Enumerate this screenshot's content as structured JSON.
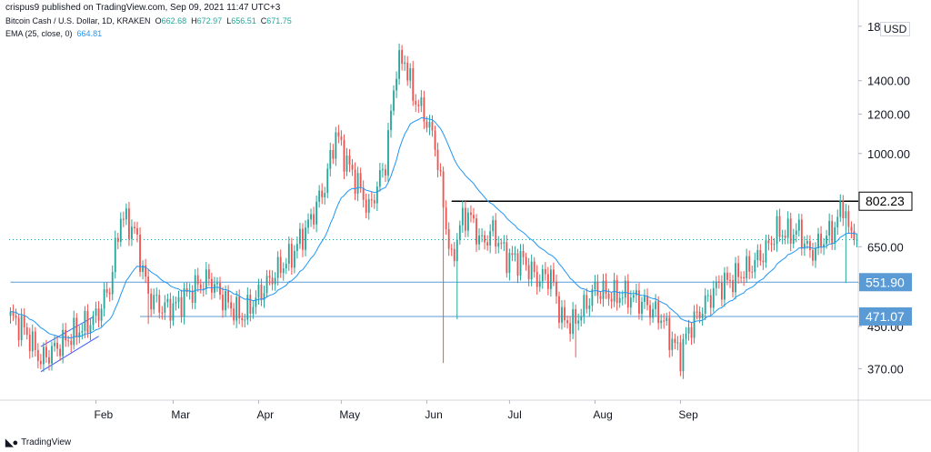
{
  "header": {
    "published": "crispus9 published on TradingView.com, Sep 09, 2021 11:47 UTC+3",
    "symbol": "Bitcoin Cash / U.S. Dollar, 1D, KRAKEN",
    "o_label": "O",
    "o_value": "662.68",
    "h_label": "H",
    "h_value": "672.97",
    "l_label": "L",
    "l_value": "656.51",
    "c_label": "C",
    "c_value": "671.75",
    "ema_label": "EMA (25, close, 0)",
    "ema_value": "664.81"
  },
  "currency": "USD",
  "footer": {
    "brand": "TradingView"
  },
  "colors": {
    "up": "#26a69a",
    "down": "#ef5350",
    "ema": "#2196f3",
    "line": "#5b9bd5",
    "resistance": "#000000",
    "grid": "#e0e3eb"
  },
  "chart_data": {
    "type": "candlestick",
    "scale": "log",
    "ylim": [
      320,
      1900
    ],
    "y_ticks": [
      "370.00",
      "450.00",
      "550.00",
      "650.00",
      "1000.00",
      "1200.00",
      "1400.00",
      "1800.00"
    ],
    "x_ticks": [
      "Feb",
      "Mar",
      "Apr",
      "May",
      "Jun",
      "Jul",
      "Aug",
      "Sep"
    ],
    "price_labels": [
      {
        "text": "802.23",
        "value": 802.23,
        "style": "black"
      },
      {
        "text": "551.90",
        "value": 551.9,
        "style": "blue"
      },
      {
        "text": "471.07",
        "value": 471.07,
        "style": "blue"
      }
    ],
    "last_close": 671.75,
    "horizontal_lines": [
      {
        "value": 802.23,
        "from_day": 160
      },
      {
        "value": 551.9,
        "from_day": 0
      },
      {
        "value": 471.07,
        "from_day": 47
      }
    ],
    "trend_channel": [
      {
        "from": [
          11,
          410
        ],
        "to": [
          30,
          470
        ]
      },
      {
        "from": [
          11,
          365
        ],
        "to": [
          32,
          430
        ]
      }
    ],
    "anchors": [
      [
        0,
        470
      ],
      [
        5,
        445
      ],
      [
        11,
        385
      ],
      [
        17,
        410
      ],
      [
        24,
        440
      ],
      [
        31,
        470
      ],
      [
        36,
        540
      ],
      [
        40,
        750
      ],
      [
        45,
        700
      ],
      [
        50,
        520
      ],
      [
        55,
        490
      ],
      [
        60,
        495
      ],
      [
        66,
        535
      ],
      [
        72,
        560
      ],
      [
        78,
        505
      ],
      [
        84,
        470
      ],
      [
        90,
        520
      ],
      [
        96,
        575
      ],
      [
        102,
        625
      ],
      [
        108,
        720
      ],
      [
        114,
        860
      ],
      [
        118,
        1100
      ],
      [
        122,
        960
      ],
      [
        126,
        870
      ],
      [
        130,
        770
      ],
      [
        136,
        960
      ],
      [
        140,
        1500
      ],
      [
        143,
        1540
      ],
      [
        146,
        1310
      ],
      [
        150,
        1200
      ],
      [
        154,
        1050
      ],
      [
        157,
        790
      ],
      [
        160,
        600
      ],
      [
        163,
        720
      ],
      [
        166,
        760
      ],
      [
        171,
        660
      ],
      [
        175,
        700
      ],
      [
        180,
        620
      ],
      [
        186,
        610
      ],
      [
        191,
        560
      ],
      [
        196,
        570
      ],
      [
        200,
        465
      ],
      [
        204,
        455
      ],
      [
        208,
        490
      ],
      [
        212,
        535
      ],
      [
        218,
        520
      ],
      [
        224,
        520
      ],
      [
        230,
        500
      ],
      [
        236,
        470
      ],
      [
        240,
        420
      ],
      [
        243,
        395
      ],
      [
        246,
        445
      ],
      [
        251,
        490
      ],
      [
        256,
        540
      ],
      [
        262,
        560
      ],
      [
        268,
        590
      ],
      [
        274,
        640
      ],
      [
        278,
        700
      ],
      [
        282,
        690
      ],
      [
        286,
        700
      ],
      [
        290,
        630
      ],
      [
        294,
        665
      ],
      [
        299,
        710
      ],
      [
        302,
        800
      ],
      [
        304,
        700
      ],
      [
        306,
        672
      ]
    ],
    "spikes": [
      {
        "day": 157,
        "low": 380
      },
      {
        "day": 162,
        "low": 465
      },
      {
        "day": 205,
        "low": 390
      },
      {
        "day": 303,
        "low": 550
      },
      {
        "day": 50,
        "low": 455
      }
    ]
  }
}
